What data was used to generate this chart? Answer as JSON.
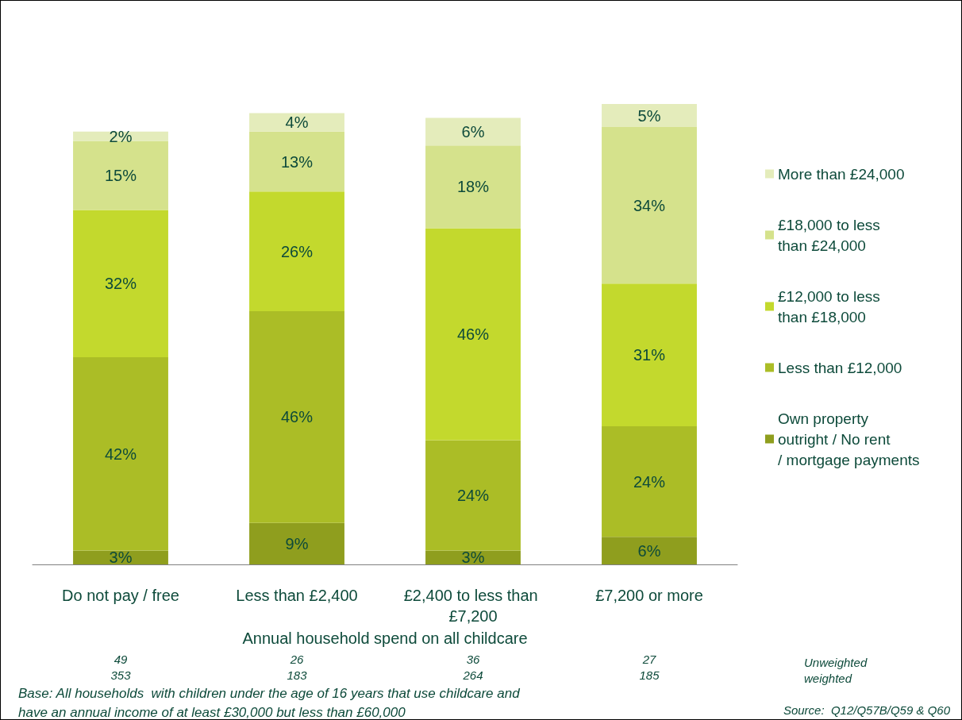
{
  "chart_data": {
    "type": "bar",
    "stacked": true,
    "legend": "right",
    "xlabel": "Annual household spend on all childcare",
    "categories": [
      "Do not pay / free",
      "Less than £2,400",
      "£2,400 to less than £7,200",
      "£7,200 or more"
    ],
    "series": [
      {
        "name": "Own property outright / No rent / mortgage payments",
        "color": "#8f9e1e",
        "values": [
          3,
          9,
          3,
          6
        ],
        "value_labels": [
          "3%",
          "9%",
          "3%",
          "6%"
        ]
      },
      {
        "name": "Less than £12,000",
        "color": "#abbd26",
        "values": [
          42,
          46,
          24,
          24
        ],
        "value_labels": [
          "42%",
          "46%",
          "24%",
          "24%"
        ]
      },
      {
        "name": "£12,000 to less than £18,000",
        "color": "#c3d92d",
        "values": [
          32,
          26,
          46,
          31
        ],
        "value_labels": [
          "32%",
          "26%",
          "46%",
          "31%"
        ]
      },
      {
        "name": "£18,000 to less than £24,000",
        "color": "#d5e28c",
        "values": [
          15,
          13,
          18,
          34
        ],
        "value_labels": [
          "15%",
          "13%",
          "18%",
          "34%"
        ]
      },
      {
        "name": "More than £24,000",
        "color": "#e4ecbb",
        "values": [
          2,
          4,
          6,
          5
        ],
        "value_labels": [
          "2%",
          "4%",
          "6%",
          "5%"
        ]
      }
    ],
    "annotations": [
      "49",
      "353",
      "26",
      "183",
      "36",
      "264",
      "27",
      "185",
      "Unweighted",
      "weighted",
      "Base: All households  with children under the age of 16 years that use childcare and have an annual income of at least £30,000 but less than £60,000",
      "Source:  Q12/Q57B/Q59 & Q60"
    ]
  }
}
